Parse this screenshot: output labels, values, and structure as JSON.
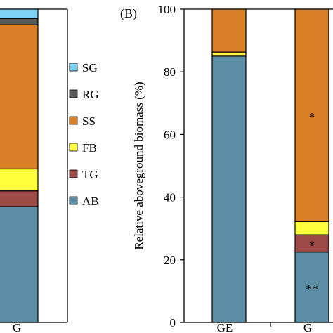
{
  "chart_data": [
    {
      "type": "bar",
      "stacked": true,
      "panel_label": "",
      "categories": [
        "G"
      ],
      "series": [
        {
          "name": "AB",
          "color": "#5b8ea4",
          "values": [
            37
          ]
        },
        {
          "name": "TG",
          "color": "#9c4a48",
          "values": [
            5
          ]
        },
        {
          "name": "FB",
          "color": "#ffff3c",
          "values": [
            7
          ]
        },
        {
          "name": "SS",
          "color": "#d97f26",
          "values": [
            46
          ]
        },
        {
          "name": "RG",
          "color": "#595959",
          "values": [
            2
          ]
        },
        {
          "name": "SG",
          "color": "#7ed3f4",
          "values": [
            3
          ]
        }
      ],
      "ylim": [
        0,
        100
      ],
      "grid": false,
      "legend": {
        "placement": "right",
        "order": [
          "SG",
          "RG",
          "SS",
          "FB",
          "TG",
          "AB"
        ]
      }
    },
    {
      "type": "bar",
      "stacked": true,
      "panel_label": "(B)",
      "categories": [
        "GE",
        "G"
      ],
      "series": [
        {
          "name": "AB",
          "color": "#5b8ea4",
          "values": [
            85,
            22.5
          ]
        },
        {
          "name": "TG",
          "color": "#9c4a48",
          "values": [
            0,
            5.5
          ]
        },
        {
          "name": "FB",
          "color": "#ffff3c",
          "values": [
            1.3,
            4.2
          ]
        },
        {
          "name": "SS",
          "color": "#d97f26",
          "values": [
            13.7,
            67.8
          ]
        },
        {
          "name": "RG",
          "color": "#595959",
          "values": [
            0,
            0
          ]
        },
        {
          "name": "SG",
          "color": "#7ed3f4",
          "values": [
            0,
            0
          ]
        }
      ],
      "annotations": [
        {
          "category": "G",
          "series": "AB",
          "text": "**"
        },
        {
          "category": "G",
          "series": "TG",
          "text": "*"
        },
        {
          "category": "G",
          "series": "SS",
          "text": "*"
        }
      ],
      "ylabel": "Relative aboveground biomass (%)",
      "ylim": [
        0,
        100
      ],
      "yticks": [
        "0",
        "20",
        "40",
        "60",
        "80",
        "100"
      ],
      "grid": false
    }
  ]
}
